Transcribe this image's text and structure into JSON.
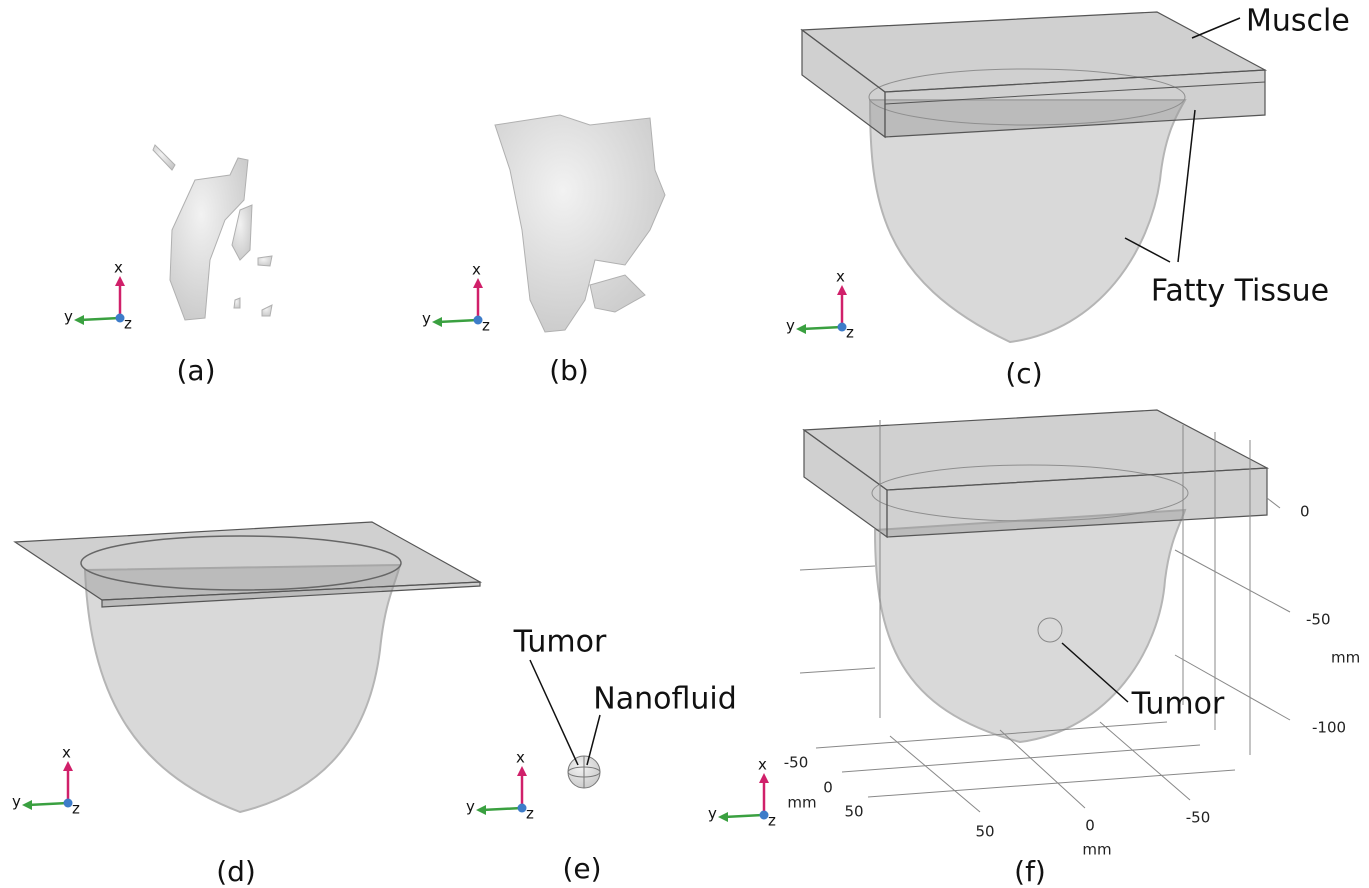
{
  "panels": [
    {
      "label": "(a)",
      "triad": {
        "x": "x",
        "y": "y",
        "z": "z"
      }
    },
    {
      "label": "(b)",
      "triad": {
        "x": "x",
        "y": "y",
        "z": "z"
      }
    },
    {
      "label": "(c)",
      "triad": {
        "x": "x",
        "y": "y",
        "z": "z"
      },
      "annotations": [
        "Muscle",
        "Fatty Tissue"
      ]
    },
    {
      "label": "(d)",
      "triad": {
        "x": "x",
        "y": "y",
        "z": "z"
      }
    },
    {
      "label": "(e)",
      "triad": {
        "x": "x",
        "y": "y",
        "z": "z"
      },
      "annotations": [
        "Tumor",
        "Nanofluid"
      ]
    },
    {
      "label": "(f)",
      "triad": {
        "x": "x",
        "y": "y",
        "z": "z"
      },
      "annotations": [
        "Tumor"
      ],
      "axes": {
        "vertical": {
          "ticks": [
            "0",
            "-50",
            "-100"
          ],
          "unit": "mm"
        },
        "left": {
          "ticks": [
            "-50",
            "0",
            "50"
          ],
          "unit": "mm"
        },
        "bottom": {
          "ticks": [
            "50",
            "0",
            "-50"
          ],
          "unit": "mm"
        }
      }
    }
  ]
}
